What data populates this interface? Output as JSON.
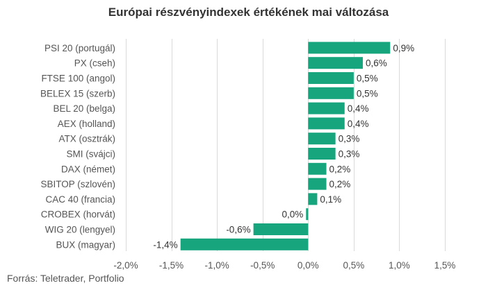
{
  "chart_data": {
    "type": "bar",
    "orientation": "horizontal",
    "title": "Európai részvényindexek értékének mai változása",
    "categories": [
      "PSI 20 (portugál)",
      "PX (cseh)",
      "FTSE 100 (angol)",
      "BELEX 15 (szerb)",
      "BEL 20 (belga)",
      "AEX (holland)",
      "ATX (osztrák)",
      "SMI (svájci)",
      "DAX (német)",
      "SBITOP (szlovén)",
      "CAC 40 (francia)",
      "CROBEX (horvát)",
      "WIG 20 (lengyel)",
      "BUX (magyar)"
    ],
    "values": [
      0.9,
      0.6,
      0.5,
      0.5,
      0.4,
      0.4,
      0.3,
      0.3,
      0.2,
      0.2,
      0.1,
      0.0,
      -0.6,
      -1.4
    ],
    "value_labels": [
      "0,9%",
      "0,6%",
      "0,5%",
      "0,5%",
      "0,4%",
      "0,4%",
      "0,3%",
      "0,3%",
      "0,2%",
      "0,2%",
      "0,1%",
      "0,0%",
      "-0,6%",
      "-1,4%"
    ],
    "xlim": [
      -2.0,
      1.5
    ],
    "xticks": [
      -2.0,
      -1.5,
      -1.0,
      -0.5,
      0.0,
      0.5,
      1.0,
      1.5
    ],
    "xtick_labels": [
      "-2,0%",
      "-1,5%",
      "-1,0%",
      "-0,5%",
      "0,0%",
      "0,5%",
      "1,0%",
      "1,5%"
    ],
    "grid": "vertical",
    "legend": "none",
    "bar_color": "#17a57e",
    "grid_color": "#d9d9d9"
  },
  "source": "Forrás: Teletrader, Portfolio"
}
